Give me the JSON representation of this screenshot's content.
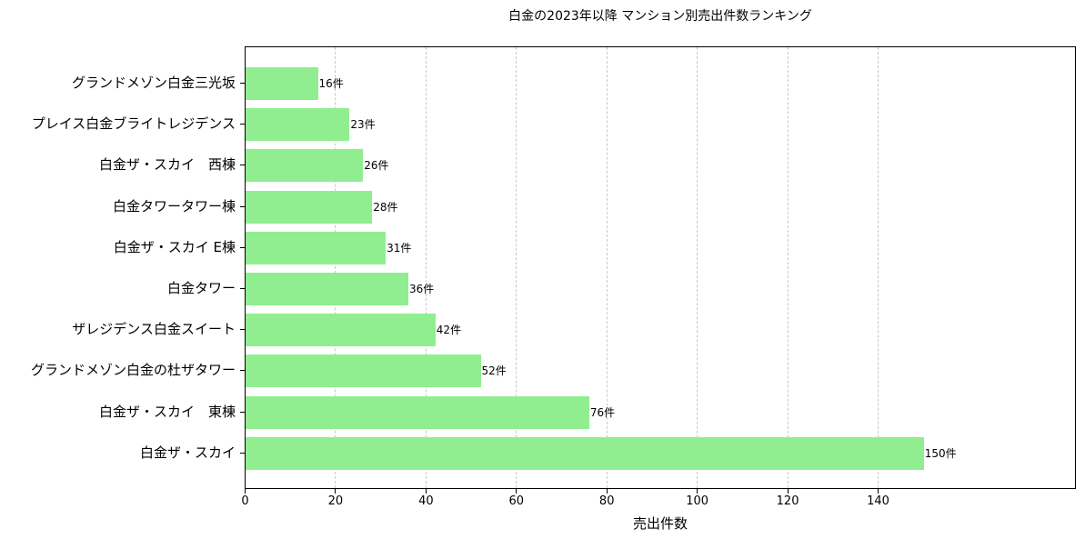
{
  "chart_data": {
    "type": "bar",
    "orientation": "horizontal",
    "title": "白金の2023年以降 マンション別売出件数ランキング",
    "xlabel": "売出件数",
    "ylabel": "",
    "xlim": [
      0,
      157.5
    ],
    "xticks": [
      0,
      20,
      40,
      60,
      80,
      100,
      120,
      140
    ],
    "grid": {
      "x": true,
      "y": false,
      "style": "dashed"
    },
    "bar_color": "#90ee90",
    "value_suffix": "件",
    "categories": [
      "グランドメゾン白金三光坂",
      "プレイス白金ブライトレジデンス",
      "白金ザ・スカイ　西棟",
      "白金タワータワー棟",
      "白金ザ・スカイ E棟",
      "白金タワー",
      "ザレジデンス白金スイート",
      "グランドメゾン白金の杜ザタワー",
      "白金ザ・スカイ　東棟",
      "白金ザ・スカイ"
    ],
    "values": [
      16,
      23,
      26,
      28,
      31,
      36,
      42,
      52,
      76,
      150
    ],
    "labels": [
      "16件",
      "23件",
      "26件",
      "28件",
      "31件",
      "36件",
      "42件",
      "52件",
      "76件",
      "150件"
    ]
  }
}
